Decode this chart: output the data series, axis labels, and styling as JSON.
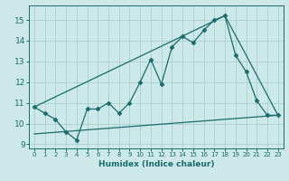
{
  "title": "",
  "xlabel": "Humidex (Indice chaleur)",
  "bg_color": "#cce8e8",
  "line_color": "#1a6b6b",
  "grid_color": "#a8d0d0",
  "xlim": [
    -0.5,
    23.5
  ],
  "ylim": [
    8.8,
    15.7
  ],
  "x_ticks": [
    0,
    1,
    2,
    3,
    4,
    5,
    6,
    7,
    8,
    9,
    10,
    11,
    12,
    13,
    14,
    15,
    16,
    17,
    18,
    19,
    20,
    21,
    22,
    23
  ],
  "y_ticks": [
    9,
    10,
    11,
    12,
    13,
    14,
    15
  ],
  "main_x": [
    0,
    1,
    2,
    3,
    4,
    5,
    6,
    7,
    8,
    9,
    10,
    11,
    12,
    13,
    14,
    15,
    16,
    17,
    18,
    19,
    20,
    21,
    22,
    23
  ],
  "main_y": [
    10.8,
    10.5,
    10.2,
    9.6,
    9.2,
    10.7,
    10.7,
    11.0,
    10.5,
    11.0,
    12.0,
    13.1,
    11.9,
    13.7,
    14.2,
    13.9,
    14.5,
    15.0,
    15.2,
    13.3,
    12.5,
    11.1,
    10.4,
    10.4
  ],
  "line2_x": [
    0,
    18,
    20,
    23
  ],
  "line2_y": [
    10.8,
    15.2,
    13.3,
    10.4
  ],
  "line3_x": [
    0,
    23
  ],
  "line3_y": [
    9.5,
    10.4
  ],
  "marker_style": "D",
  "marker_size": 2.5,
  "line_width": 0.9
}
